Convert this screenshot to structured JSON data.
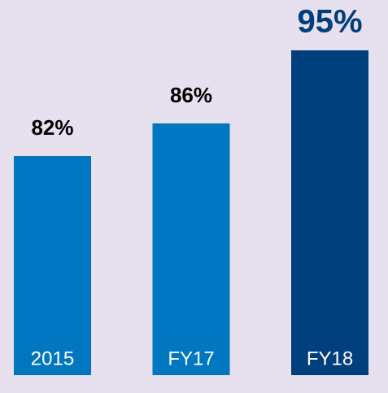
{
  "chart_data": {
    "type": "bar",
    "categories": [
      "2015",
      "FY17",
      "FY18"
    ],
    "values": [
      82,
      86,
      95
    ],
    "value_labels": [
      "82%",
      "86%",
      "95%"
    ],
    "colors": [
      "#0077c0",
      "#0077c0",
      "#003f7d"
    ],
    "label_colors": [
      "#000000",
      "#000000",
      "#003f7d"
    ],
    "ylim": [
      55,
      100
    ]
  }
}
